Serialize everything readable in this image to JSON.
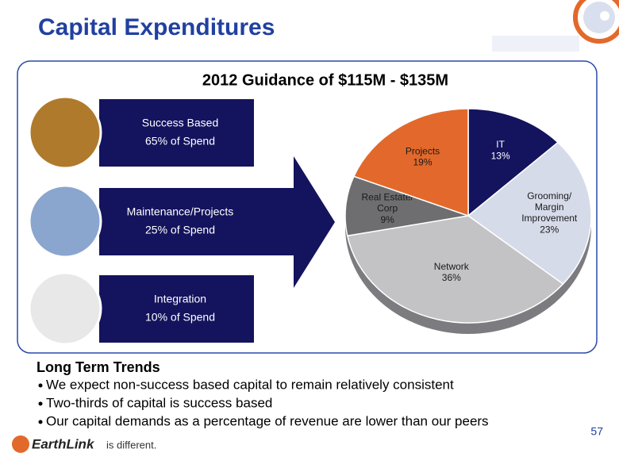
{
  "header": {
    "title": "Capital Expenditures"
  },
  "panel": {
    "subtitle": "2012 Guidance of $115M - $135M",
    "boxes": [
      {
        "title": "Success Based",
        "detail": "65% of Spend"
      },
      {
        "title": "Maintenance/Projects",
        "detail": "25% of Spend"
      },
      {
        "title": "Integration",
        "detail": "10% of Spend"
      }
    ]
  },
  "chart_data": {
    "type": "pie",
    "categories": [
      "IT",
      "Grooming/ Margin Improvement",
      "Network",
      "Real Estate/ Corp",
      "Projects"
    ],
    "values": [
      13,
      23,
      36,
      9,
      19
    ],
    "value_labels": [
      "13%",
      "23%",
      "36%",
      "9%",
      "19%"
    ],
    "colors": [
      "#14135e",
      "#d6dbea",
      "#c3c3c6",
      "#6e6e70",
      "#e2692b"
    ],
    "label_colors": [
      "#ffffff",
      "#1a1a1a",
      "#1a1a1a",
      "#1a1a1a",
      "#1a1a1a"
    ]
  },
  "trends": {
    "heading": "Long Term Trends",
    "bullets": [
      "We expect non-success based capital to remain relatively consistent",
      "Two-thirds of capital is success based",
      "Our capital demands as a percentage of revenue are lower than our peers"
    ]
  },
  "footer": {
    "brand": "EarthLink",
    "tagline": "is different.",
    "page": "57"
  }
}
